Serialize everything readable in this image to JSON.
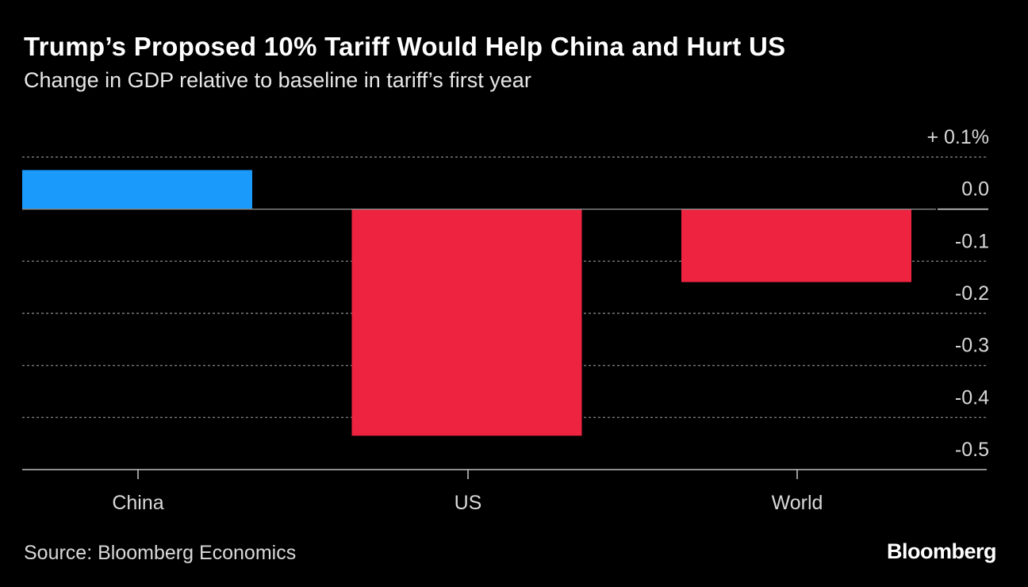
{
  "header": {
    "title": "Trump’s Proposed 10% Tariff Would Help China and Hurt US",
    "subtitle": "Change in GDP relative to baseline in tariff’s first year"
  },
  "footer": {
    "source": "Source: Bloomberg Economics",
    "brand": "Bloomberg"
  },
  "colors": {
    "positive": "#1a9bfc",
    "negative": "#ee2340",
    "background": "#000000",
    "gridline": "#777777",
    "text": "#ffffff",
    "axis_text": "#d9d9d9"
  },
  "chart_data": {
    "type": "bar",
    "title": "Trump’s Proposed 10% Tariff Would Help China and Hurt US",
    "subtitle": "Change in GDP relative to baseline in tariff’s first year",
    "categories": [
      "China",
      "US",
      "World"
    ],
    "values": [
      0.075,
      -0.435,
      -0.14
    ],
    "ylim": [
      -0.5,
      0.1
    ],
    "yticks": [
      0.1,
      0.0,
      -0.1,
      -0.2,
      -0.3,
      -0.4,
      -0.5
    ],
    "ytick_labels": [
      "+ 0.1%",
      "0.0",
      "-0.1",
      "-0.2",
      "-0.3",
      "-0.4",
      "-0.5"
    ],
    "xlabel": "",
    "ylabel": "",
    "y_axis_side": "right",
    "grid": true,
    "grid_style": "dotted"
  }
}
